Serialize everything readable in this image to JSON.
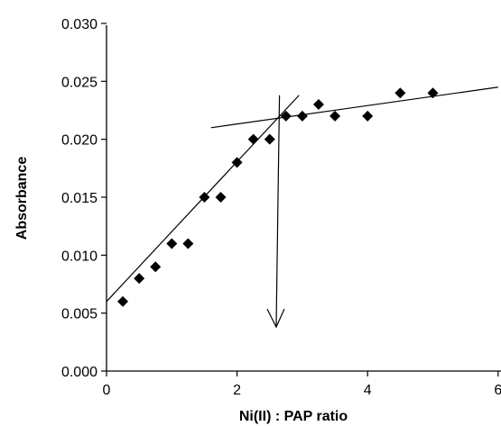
{
  "chart_data": {
    "type": "scatter",
    "xlabel": "Ni(II) : PAP ratio",
    "ylabel": "Absorbance",
    "xlim": [
      0,
      6
    ],
    "ylim": [
      0,
      0.03
    ],
    "x_ticks": [
      "0",
      "2",
      "4",
      "6"
    ],
    "y_ticks": [
      "0.000",
      "0.005",
      "0.010",
      "0.015",
      "0.020",
      "0.025",
      "0.030"
    ],
    "grid": false,
    "legend": "none",
    "colors": {
      "points": "#000000",
      "lines": "#000000",
      "axes": "#000000"
    },
    "series": [
      {
        "marker": "diamond",
        "x": [
          0.25,
          0.5,
          0.75,
          1.0,
          1.25,
          1.5,
          1.75,
          2.0,
          2.25,
          2.5,
          2.75,
          3.0,
          3.25,
          3.5,
          4.0,
          4.5,
          5.0
        ],
        "y": [
          0.006,
          0.008,
          0.009,
          0.011,
          0.011,
          0.015,
          0.015,
          0.018,
          0.02,
          0.02,
          0.022,
          0.022,
          0.023,
          0.022,
          0.022,
          0.024,
          0.024
        ]
      }
    ],
    "annotations": {
      "fit_line_rising": {
        "x": [
          0.0,
          2.95
        ],
        "y": [
          0.006,
          0.0238
        ]
      },
      "fit_line_plateau": {
        "x": [
          1.6,
          6.0
        ],
        "y": [
          0.021,
          0.0245
        ]
      },
      "arrow": {
        "x": [
          2.65,
          2.6
        ],
        "y": [
          0.0238,
          0.0038
        ]
      }
    }
  }
}
